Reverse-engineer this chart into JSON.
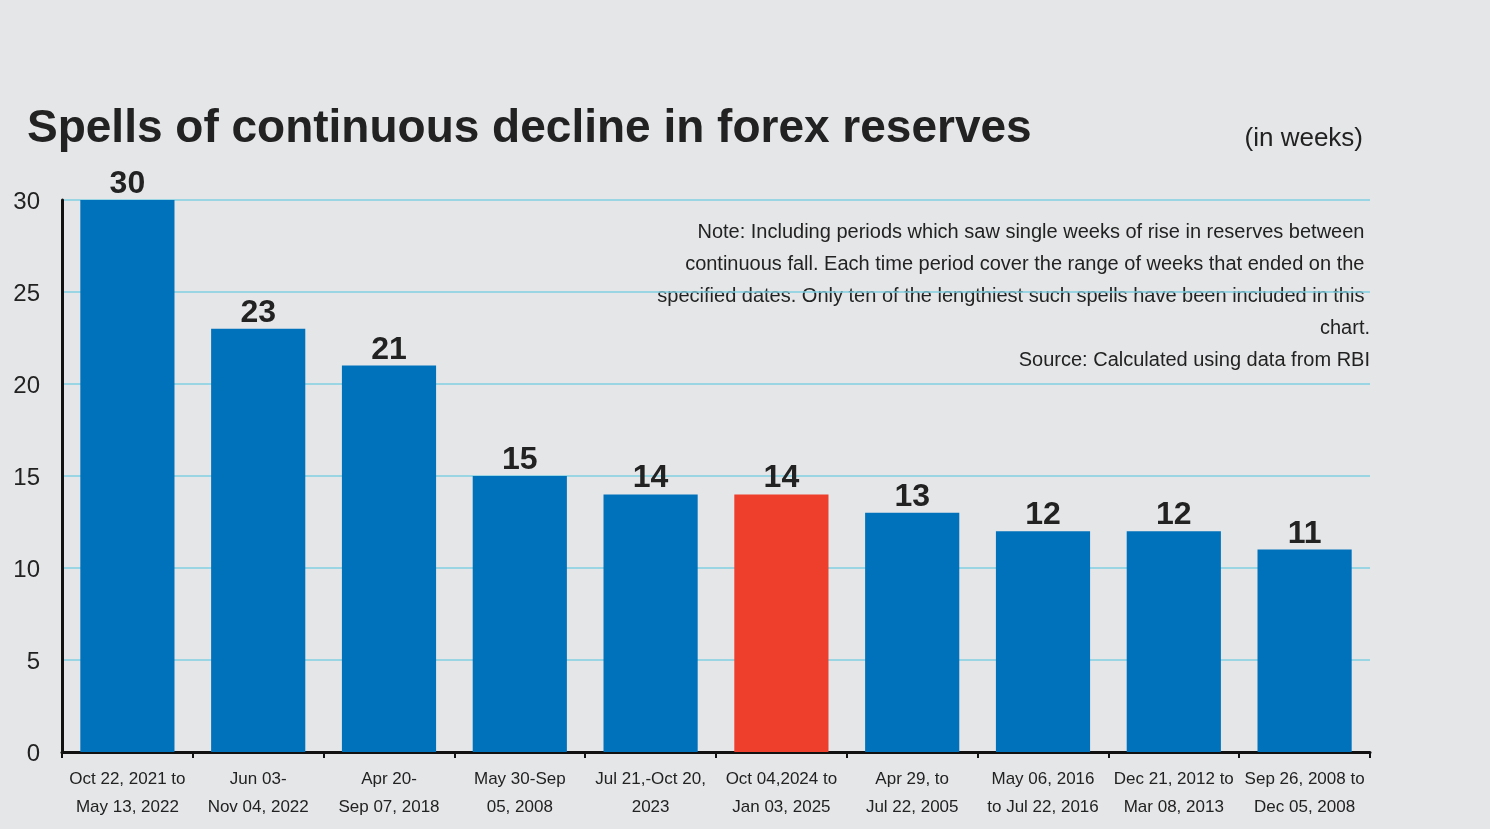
{
  "chart_data": {
    "type": "bar",
    "title": "Spells of continuous decline in forex reserves",
    "ylabel": "(in weeks)",
    "categories": [
      "Oct 22, 2021 to\nMay 13, 2022",
      "Jun 03-\nNov 04, 2022",
      "Apr 20-\nSep 07, 2018",
      "May 30-Sep\n05, 2008",
      "Jul 21,-Oct 20,\n2023",
      "Oct 04,2024 to\nJan 03, 2025",
      "Apr 29, to\nJul 22, 2005",
      "May 06, 2016\nto Jul 22, 2016",
      "Dec 21, 2012 to\nMar 08, 2013",
      "Sep 26, 2008 to\nDec 05, 2008"
    ],
    "values": [
      30,
      23,
      21,
      15,
      14,
      14,
      13,
      12,
      12,
      11
    ],
    "colors": [
      "#0072bc",
      "#0072bc",
      "#0072bc",
      "#0072bc",
      "#0072bc",
      "#ee3e2c",
      "#0072bc",
      "#0072bc",
      "#0072bc",
      "#0072bc"
    ],
    "ylim": [
      0,
      30
    ],
    "yticks": [
      0,
      5,
      10,
      15,
      20,
      25,
      30
    ],
    "grid": "y",
    "data_labels": true,
    "annotations": [
      "Note: Including periods which saw single weeks of rise in reserves between continuous fall. Each time period cover the range of weeks that ended on the specified dates. Only ten of the lengthiest such spells have been included in this chart.",
      "Source: Calculated using data from RBI"
    ]
  }
}
